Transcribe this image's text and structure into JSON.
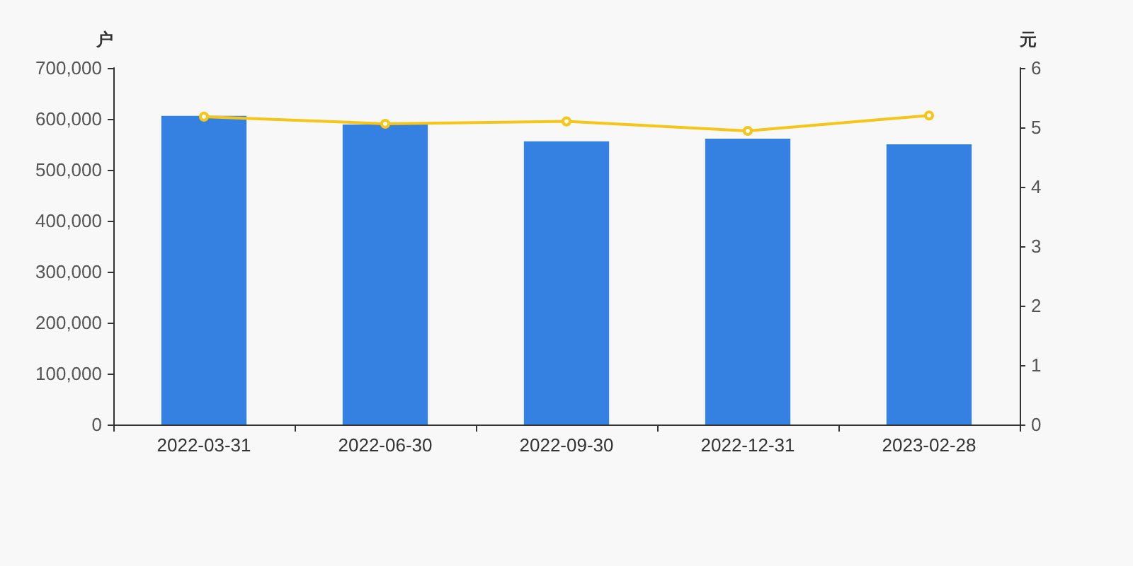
{
  "chart_data": {
    "type": "bar",
    "ylabel": "户",
    "y2label": "元",
    "categories": [
      "2022-03-31",
      "2022-06-30",
      "2022-09-30",
      "2022-12-31",
      "2023-02-28"
    ],
    "series": [
      {
        "color": "#3481e1",
        "values": [
          606000,
          589000,
          556000,
          561000,
          550000
        ]
      },
      {
        "type": "line",
        "axis": "y2",
        "color": "#f5c518",
        "values": [
          5.18,
          5.06,
          5.1,
          4.94,
          5.2
        ]
      }
    ],
    "ylim": [
      0,
      700000
    ],
    "yticks": [
      {
        "value": 0,
        "label": "0"
      },
      {
        "value": 100000,
        "label": "100,000"
      },
      {
        "value": 200000,
        "label": "200,000"
      },
      {
        "value": 300000,
        "label": "300,000"
      },
      {
        "value": 400000,
        "label": "400,000"
      },
      {
        "value": 500000,
        "label": "500,000"
      },
      {
        "value": 600000,
        "label": "600,000"
      },
      {
        "value": 700000,
        "label": "700,000"
      }
    ],
    "y2lim": [
      0,
      6
    ],
    "y2ticks": [
      0,
      1,
      2,
      3,
      4,
      5,
      6
    ],
    "grid": false,
    "marker": "circle"
  }
}
